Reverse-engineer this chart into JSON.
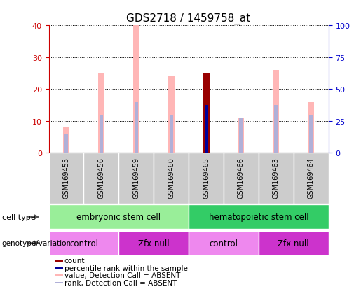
{
  "title": "GDS2718 / 1459758_at",
  "samples": [
    "GSM169455",
    "GSM169456",
    "GSM169459",
    "GSM169460",
    "GSM169465",
    "GSM169466",
    "GSM169463",
    "GSM169464"
  ],
  "value_bars": [
    8,
    25,
    40,
    24,
    25,
    11,
    26,
    16
  ],
  "rank_bars": [
    6,
    12,
    16,
    12,
    15,
    11,
    15,
    12
  ],
  "count_bar_idx": 4,
  "count_value": 25,
  "count_rank": 15,
  "ylim_left": [
    0,
    40
  ],
  "ylim_right": [
    0,
    100
  ],
  "yticks_left": [
    0,
    10,
    20,
    30,
    40
  ],
  "yticks_right": [
    0,
    25,
    50,
    75,
    100
  ],
  "color_value_absent": "#FFB6B6",
  "color_rank_absent": "#B0B0D8",
  "color_count": "#990000",
  "color_percentile": "#000099",
  "color_sample_bg": "#CCCCCC",
  "cell_type_groups": [
    {
      "label": "embryonic stem cell",
      "start": 0,
      "end": 3,
      "color": "#99EE99"
    },
    {
      "label": "hematopoietic stem cell",
      "start": 4,
      "end": 7,
      "color": "#33CC66"
    }
  ],
  "genotype_groups": [
    {
      "label": "control",
      "start": 0,
      "end": 1,
      "color": "#EE88EE"
    },
    {
      "label": "Zfx null",
      "start": 2,
      "end": 3,
      "color": "#CC33CC"
    },
    {
      "label": "control",
      "start": 4,
      "end": 5,
      "color": "#EE88EE"
    },
    {
      "label": "Zfx null",
      "start": 6,
      "end": 7,
      "color": "#CC33CC"
    }
  ],
  "legend_items": [
    {
      "label": "count",
      "color": "#990000"
    },
    {
      "label": "percentile rank within the sample",
      "color": "#000099"
    },
    {
      "label": "value, Detection Call = ABSENT",
      "color": "#FFB6B6"
    },
    {
      "label": "rank, Detection Call = ABSENT",
      "color": "#B0B0D8"
    }
  ],
  "value_bar_width": 0.18,
  "rank_bar_width": 0.1,
  "left_axis_color": "#CC0000",
  "right_axis_color": "#0000CC",
  "grid_color": "#000000",
  "background_color": "#FFFFFF"
}
